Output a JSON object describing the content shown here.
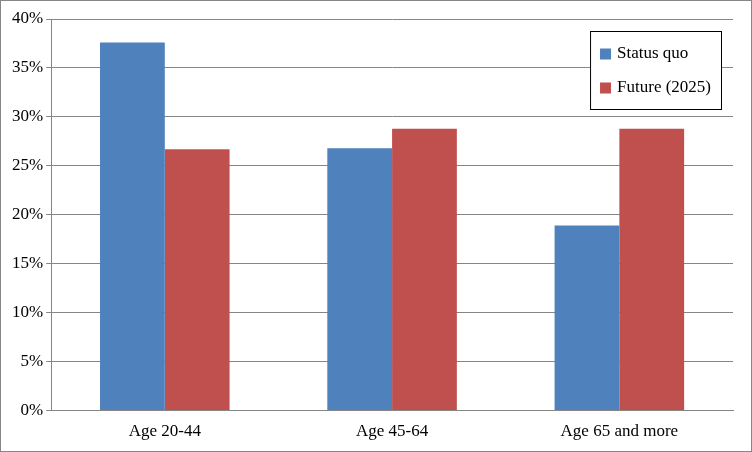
{
  "chart_data": {
    "type": "bar",
    "categories": [
      "Age 20-44",
      "Age 45-64",
      "Age 65 and more"
    ],
    "series": [
      {
        "name": "Status quo",
        "color": "#4f81bd",
        "values": [
          37.6,
          26.8,
          18.9
        ]
      },
      {
        "name": "Future (2025)",
        "color": "#c0504d",
        "values": [
          26.7,
          28.8,
          28.8
        ]
      }
    ],
    "ylim": [
      0,
      40
    ],
    "yticks": [
      {
        "value": 0,
        "label": "0%"
      },
      {
        "value": 5,
        "label": "5%"
      },
      {
        "value": 10,
        "label": "10%"
      },
      {
        "value": 15,
        "label": "15%"
      },
      {
        "value": 20,
        "label": "20%"
      },
      {
        "value": 25,
        "label": "25%"
      },
      {
        "value": 30,
        "label": "30%"
      },
      {
        "value": 35,
        "label": "35%"
      },
      {
        "value": 40,
        "label": "40%"
      }
    ],
    "grid": true,
    "legend": "upper right"
  }
}
